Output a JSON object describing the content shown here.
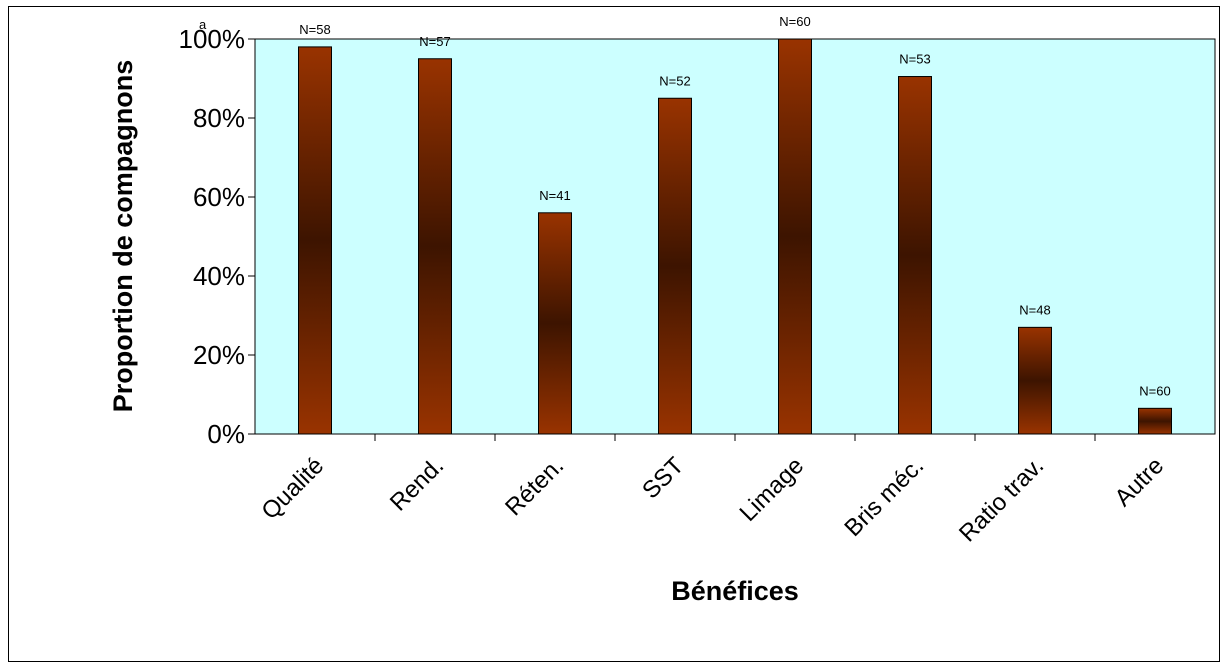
{
  "chart_data": {
    "type": "bar",
    "title": "",
    "xlabel": "Bénéfices",
    "ylabel": "Proportion de compagnons",
    "categories": [
      "Qualité",
      "Rend.",
      "Réten.",
      "SST",
      "Limage",
      "Bris méc.",
      "Ratio  trav.",
      "Autre"
    ],
    "values": [
      98,
      95,
      56,
      85,
      100,
      90.5,
      27,
      6.5
    ],
    "data_labels": [
      "N=58",
      "N=57",
      "N=41",
      "N=52",
      "N=60",
      "N=53",
      "N=48",
      "N=60"
    ],
    "ylim": [
      0,
      100
    ],
    "y_ticks": [
      "0%",
      "20%",
      "40%",
      "60%",
      "80%",
      "100%"
    ],
    "y_tick_values": [
      0,
      20,
      40,
      60,
      80,
      100
    ],
    "superscript_note": "a",
    "grid": false,
    "legend": "none",
    "colors": {
      "plot_background": "#ccffff",
      "bar_edge": "#8b3300",
      "bar_center": "#3d1400",
      "outline": "#000000"
    }
  }
}
